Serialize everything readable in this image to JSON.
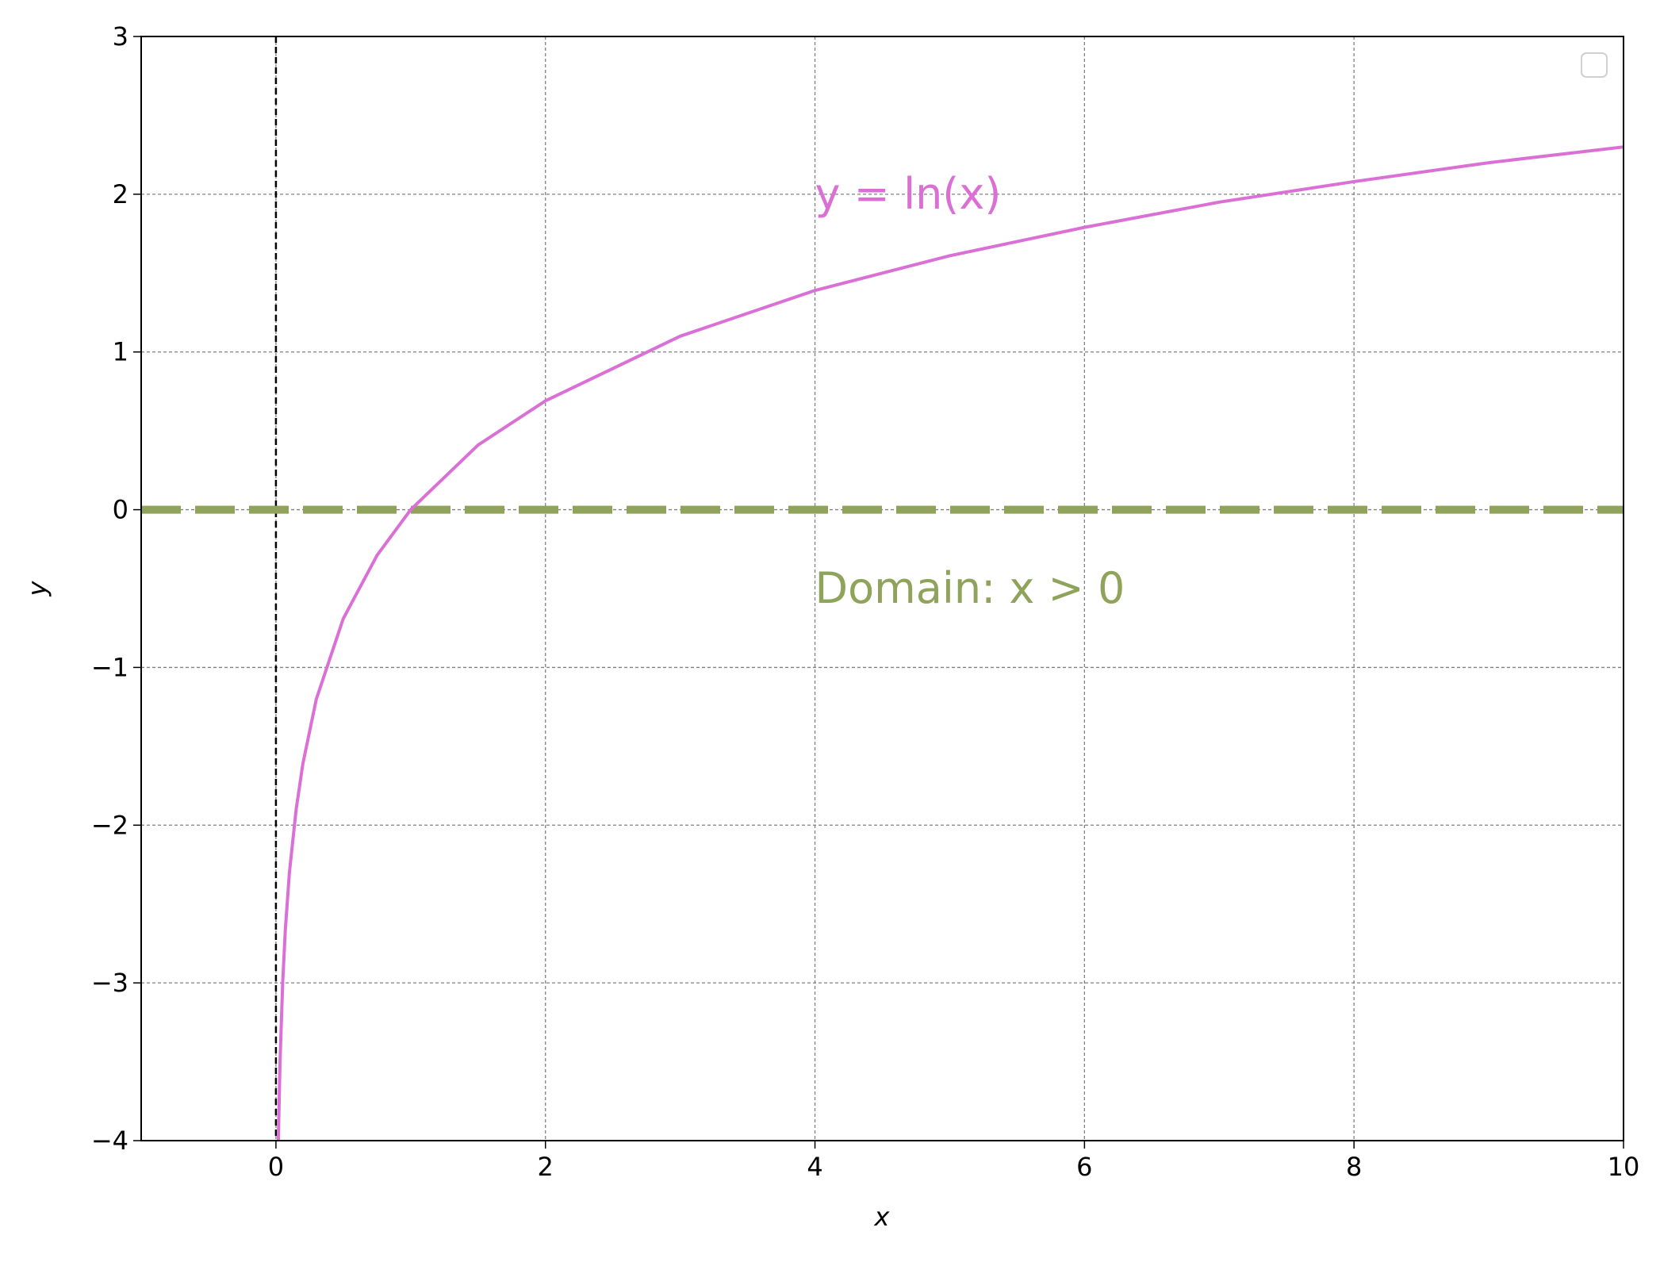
{
  "chart_data": {
    "type": "line",
    "x_label": "x",
    "y_label": "y",
    "x": [
      0.0183,
      0.02,
      0.03,
      0.05,
      0.07,
      0.1,
      0.15,
      0.2,
      0.3,
      0.5,
      0.75,
      1,
      1.5,
      2,
      3,
      4,
      5,
      6,
      7,
      8,
      9,
      10
    ],
    "series": [
      {
        "color": "#da70d6",
        "values": [
          -4,
          -3.91,
          -3.51,
          -3.0,
          -2.66,
          -2.3,
          -1.9,
          -1.61,
          -1.2,
          -0.69,
          -0.29,
          0,
          0.41,
          0.69,
          1.1,
          1.39,
          1.61,
          1.79,
          1.95,
          2.08,
          2.2,
          2.3
        ]
      }
    ],
    "hlines": [
      {
        "value": 0,
        "color": "#8fa35a"
      }
    ],
    "vlines": [
      {
        "value": 0,
        "color": "#000000"
      }
    ],
    "annotations": [
      {
        "text": "y = ln(x)",
        "color": "#da70d6"
      },
      {
        "text": "Domain: x > 0",
        "color": "#8fa35a"
      }
    ],
    "xlim": [
      -1,
      10
    ],
    "xticks": [
      0,
      2,
      4,
      6,
      8,
      10
    ],
    "ylim": [
      -4,
      3
    ],
    "yticks": [
      {
        "value": -4,
        "label": "−4"
      },
      {
        "value": -3,
        "label": "−3"
      },
      {
        "value": -2,
        "label": "−2"
      },
      {
        "value": -1,
        "label": "−1"
      },
      0,
      1,
      2,
      3
    ],
    "grid": true
  }
}
